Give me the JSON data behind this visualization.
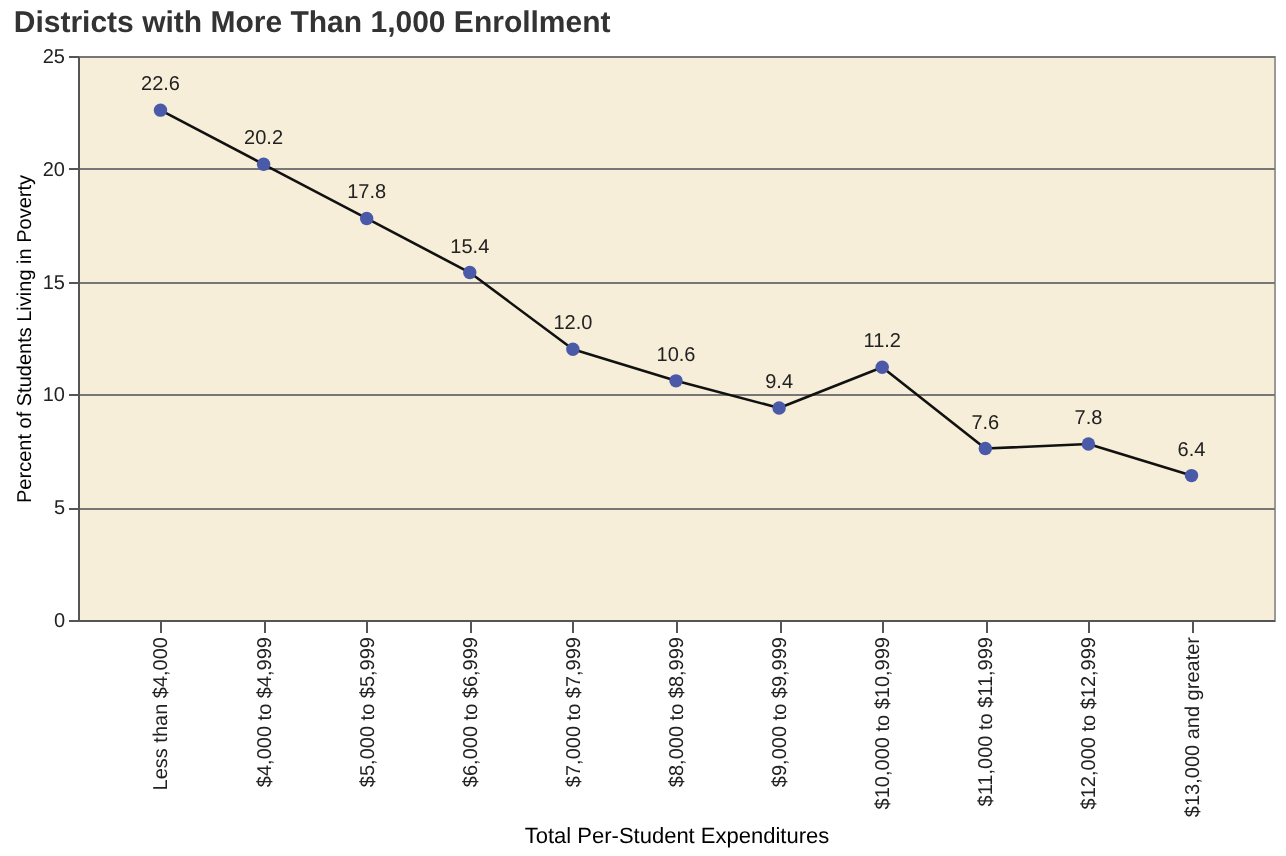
{
  "chart_data": {
    "type": "line",
    "title": "Districts with More Than 1,000 Enrollment",
    "xlabel": "Total Per-Student Expenditures",
    "ylabel": "Percent of Students Living in Poverty",
    "categories": [
      "Less than $4,000",
      "$4,000 to $4,999",
      "$5,000 to $5,999",
      "$6,000 to $6,999",
      "$7,000 to $7,999",
      "$8,000 to $8,999",
      "$9,000 to $9,999",
      "$10,000 to $10,999",
      "$11,000 to $11,999",
      "$12,000 to $12,999",
      "$13,000 and greater"
    ],
    "series": [
      {
        "color": "#4a5aa8",
        "values": [
          22.6,
          20.2,
          17.8,
          15.4,
          12.0,
          10.6,
          9.4,
          11.2,
          7.6,
          7.8,
          6.4
        ],
        "value_labels": [
          "22.6",
          "20.2",
          "17.8",
          "15.4",
          "12.0",
          "10.6",
          "9.4",
          "11.2",
          "7.6",
          "7.8",
          "6.4"
        ]
      }
    ],
    "ylim": [
      0,
      25
    ],
    "yticks": [
      0,
      5,
      10,
      15,
      20,
      25
    ],
    "grid": "y",
    "marker": "circle",
    "line_style": "solid"
  }
}
